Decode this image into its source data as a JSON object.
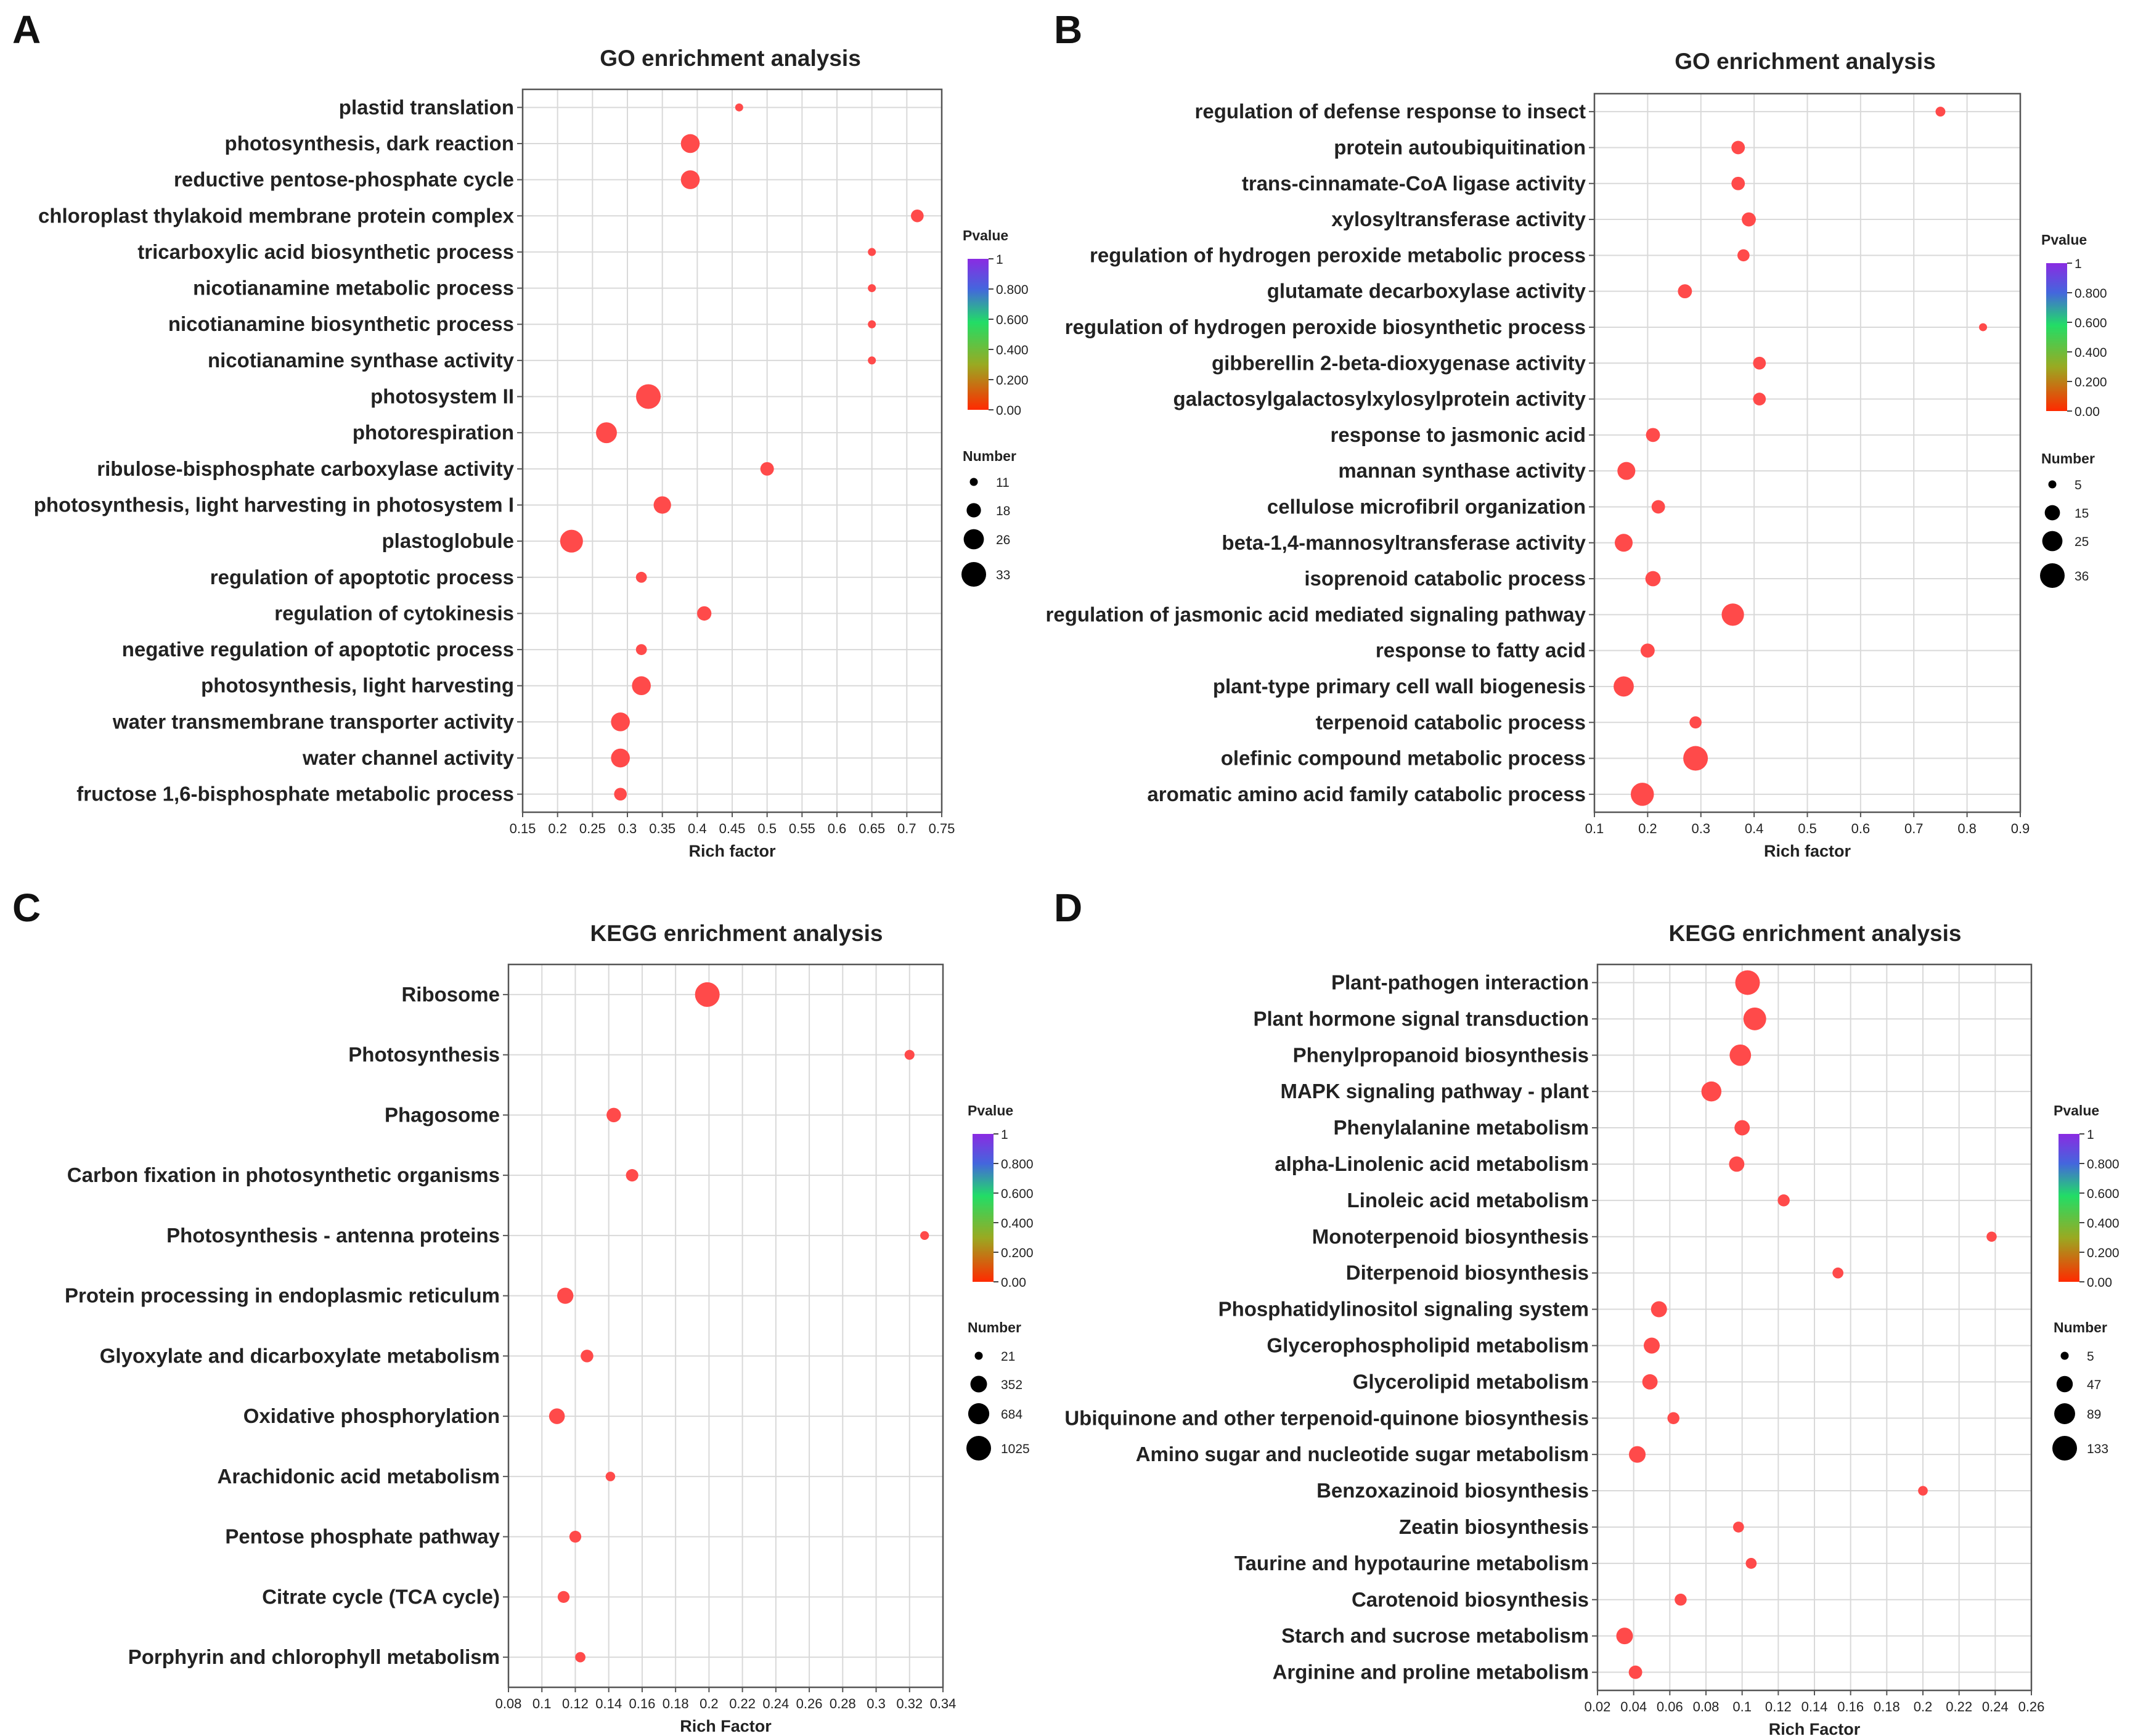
{
  "colors": {
    "low": "#ff3300",
    "mid": "#22dd66",
    "high": "#8a2be2",
    "point": "#ff4a4a"
  },
  "chart_data": [
    {
      "panel": "A",
      "type": "scatter",
      "title": "GO enrichment analysis",
      "xlabel": "Rich factor",
      "ylabel": "",
      "xlim": [
        0.15,
        0.75
      ],
      "xticks": [
        0.15,
        0.2,
        0.25,
        0.3,
        0.35,
        0.4,
        0.45,
        0.5,
        0.55,
        0.6,
        0.65,
        0.7,
        0.75
      ],
      "xtick_labels": [
        "0.15",
        "0.2",
        "0.25",
        "0.3",
        "0.35",
        "0.4",
        "0.45",
        "0.5",
        "0.55",
        "0.6",
        "0.65",
        "0.7",
        "0.75"
      ],
      "grid": true,
      "legend_placement": "right",
      "color_legend": {
        "title": "Pvalue",
        "labels": [
          "1",
          "0.800",
          "0.600",
          "0.400",
          "0.200",
          "0.00"
        ]
      },
      "size_legend": {
        "title": "Number",
        "values": [
          11,
          18,
          26,
          33
        ],
        "labels": [
          "11",
          "18",
          "26",
          "33"
        ]
      },
      "points": [
        {
          "term": "plastid translation",
          "x": 0.46,
          "size": 11
        },
        {
          "term": "photosynthesis, dark reaction",
          "x": 0.39,
          "size": 24
        },
        {
          "term": "reductive pentose-phosphate cycle",
          "x": 0.39,
          "size": 24
        },
        {
          "term": "chloroplast thylakoid membrane protein complex",
          "x": 0.715,
          "size": 16
        },
        {
          "term": "tricarboxylic acid biosynthetic process",
          "x": 0.65,
          "size": 11
        },
        {
          "term": "nicotianamine metabolic process",
          "x": 0.65,
          "size": 11
        },
        {
          "term": "nicotianamine biosynthetic process",
          "x": 0.65,
          "size": 11
        },
        {
          "term": "nicotianamine synthase activity",
          "x": 0.65,
          "size": 11
        },
        {
          "term": "photosystem II",
          "x": 0.33,
          "size": 33
        },
        {
          "term": "photorespiration",
          "x": 0.27,
          "size": 27
        },
        {
          "term": "ribulose-bisphosphate carboxylase activity",
          "x": 0.5,
          "size": 17
        },
        {
          "term": "photosynthesis, light harvesting in photosystem I",
          "x": 0.35,
          "size": 22
        },
        {
          "term": "plastoglobule",
          "x": 0.22,
          "size": 30
        },
        {
          "term": "regulation of apoptotic process",
          "x": 0.32,
          "size": 14
        },
        {
          "term": "regulation of cytokinesis",
          "x": 0.41,
          "size": 18
        },
        {
          "term": "negative regulation of apoptotic process",
          "x": 0.32,
          "size": 14
        },
        {
          "term": "photosynthesis, light harvesting",
          "x": 0.32,
          "size": 24
        },
        {
          "term": "water transmembrane transporter activity",
          "x": 0.29,
          "size": 24
        },
        {
          "term": "water channel activity",
          "x": 0.29,
          "size": 24
        },
        {
          "term": "fructose 1,6-bisphosphate metabolic process",
          "x": 0.29,
          "size": 16
        }
      ]
    },
    {
      "panel": "B",
      "type": "scatter",
      "title": "GO enrichment analysis",
      "xlabel": "Rich factor",
      "ylabel": "",
      "xlim": [
        0.1,
        0.9
      ],
      "xticks": [
        0.1,
        0.2,
        0.3,
        0.4,
        0.5,
        0.6,
        0.7,
        0.8,
        0.9
      ],
      "xtick_labels": [
        "0.1",
        "0.2",
        "0.3",
        "0.4",
        "0.5",
        "0.6",
        "0.7",
        "0.8",
        "0.9"
      ],
      "grid": true,
      "legend_placement": "right",
      "color_legend": {
        "title": "Pvalue",
        "labels": [
          "1",
          "0.800",
          "0.600",
          "0.400",
          "0.200",
          "0.00"
        ]
      },
      "size_legend": {
        "title": "Number",
        "values": [
          5,
          15,
          25,
          36
        ],
        "labels": [
          "5",
          "15",
          "25",
          "36"
        ]
      },
      "points": [
        {
          "term": "regulation of defense response to insect",
          "x": 0.75,
          "size": 7
        },
        {
          "term": "protein autoubiquitination",
          "x": 0.37,
          "size": 12
        },
        {
          "term": "trans-cinnamate-CoA ligase activity",
          "x": 0.37,
          "size": 12
        },
        {
          "term": "xylosyltransferase activity",
          "x": 0.39,
          "size": 13
        },
        {
          "term": "regulation of hydrogen peroxide metabolic process",
          "x": 0.38,
          "size": 10
        },
        {
          "term": "glutamate decarboxylase activity",
          "x": 0.27,
          "size": 13
        },
        {
          "term": "regulation of hydrogen peroxide biosynthetic process",
          "x": 0.83,
          "size": 5
        },
        {
          "term": "gibberellin 2-beta-dioxygenase activity",
          "x": 0.41,
          "size": 11
        },
        {
          "term": "galactosylgalactosylxylosylprotein activity",
          "x": 0.41,
          "size": 11
        },
        {
          "term": "response to jasmonic acid",
          "x": 0.21,
          "size": 13
        },
        {
          "term": "mannan synthase activity",
          "x": 0.16,
          "size": 20
        },
        {
          "term": "cellulose microfibril organization",
          "x": 0.22,
          "size": 12
        },
        {
          "term": "beta-1,4-mannosyltransferase activity",
          "x": 0.155,
          "size": 20
        },
        {
          "term": "isoprenoid catabolic process",
          "x": 0.21,
          "size": 15
        },
        {
          "term": "regulation of jasmonic acid mediated signaling pathway",
          "x": 0.36,
          "size": 30
        },
        {
          "term": "response to fatty acid",
          "x": 0.2,
          "size": 13
        },
        {
          "term": "plant-type primary cell wall biogenesis",
          "x": 0.155,
          "size": 25
        },
        {
          "term": "terpenoid catabolic process",
          "x": 0.29,
          "size": 10
        },
        {
          "term": "olefinic compound metabolic process",
          "x": 0.29,
          "size": 36
        },
        {
          "term": "aromatic amino acid family catabolic process",
          "x": 0.19,
          "size": 32
        }
      ]
    },
    {
      "panel": "C",
      "type": "scatter",
      "title": "KEGG enrichment analysis",
      "xlabel": "Rich Factor",
      "ylabel": "",
      "xlim": [
        0.08,
        0.34
      ],
      "xticks": [
        0.08,
        0.1,
        0.12,
        0.14,
        0.16,
        0.18,
        0.2,
        0.22,
        0.24,
        0.26,
        0.28,
        0.3,
        0.32,
        0.34
      ],
      "xtick_labels": [
        "0.08",
        "0.1",
        "0.12",
        "0.14",
        "0.16",
        "0.18",
        "0.2",
        "0.22",
        "0.24",
        "0.26",
        "0.28",
        "0.3",
        "0.32",
        "0.34"
      ],
      "grid": true,
      "legend_placement": "right",
      "color_legend": {
        "title": "Pvalue",
        "labels": [
          "1",
          "0.800",
          "0.600",
          "0.400",
          "0.200",
          "0.00"
        ]
      },
      "size_legend": {
        "title": "Number",
        "values": [
          21,
          352,
          684,
          1025
        ],
        "labels": [
          "21",
          "352",
          "684",
          "1025"
        ]
      },
      "points": [
        {
          "term": "Ribosome",
          "x": 0.199,
          "size": 1025
        },
        {
          "term": "Photosynthesis",
          "x": 0.32,
          "size": 60
        },
        {
          "term": "Phagosome",
          "x": 0.143,
          "size": 230
        },
        {
          "term": "Carbon fixation in photosynthetic organisms",
          "x": 0.154,
          "size": 140
        },
        {
          "term": "Photosynthesis - antenna proteins",
          "x": 0.329,
          "size": 35
        },
        {
          "term": "Protein processing in endoplasmic reticulum",
          "x": 0.114,
          "size": 330
        },
        {
          "term": "Glyoxylate and dicarboxylate metabolism",
          "x": 0.127,
          "size": 150
        },
        {
          "term": "Oxidative phosphorylation",
          "x": 0.109,
          "size": 300
        },
        {
          "term": "Arachidonic acid metabolism",
          "x": 0.141,
          "size": 50
        },
        {
          "term": "Pentose phosphate pathway",
          "x": 0.12,
          "size": 120
        },
        {
          "term": "Citrate cycle (TCA cycle)",
          "x": 0.113,
          "size": 120
        },
        {
          "term": "Porphyrin and chlorophyll metabolism",
          "x": 0.123,
          "size": 70
        }
      ]
    },
    {
      "panel": "D",
      "type": "scatter",
      "title": "KEGG enrichment analysis",
      "xlabel": "Rich Factor",
      "ylabel": "",
      "xlim": [
        0.02,
        0.26
      ],
      "xticks": [
        0.02,
        0.04,
        0.06,
        0.08,
        0.1,
        0.12,
        0.14,
        0.16,
        0.18,
        0.2,
        0.22,
        0.24,
        0.26
      ],
      "xtick_labels": [
        "0.02",
        "0.04",
        "0.06",
        "0.08",
        "0.1",
        "0.12",
        "0.14",
        "0.16",
        "0.18",
        "0.2",
        "0.22",
        "0.24",
        "0.26"
      ],
      "grid": true,
      "legend_placement": "right",
      "color_legend": {
        "title": "Pvalue",
        "labels": [
          "1",
          "0.800",
          "0.600",
          "0.400",
          "0.200",
          "0.00"
        ]
      },
      "size_legend": {
        "title": "Number",
        "values": [
          5,
          47,
          89,
          133
        ],
        "labels": [
          "5",
          "47",
          "89",
          "133"
        ]
      },
      "points": [
        {
          "term": "Plant-pathogen interaction",
          "x": 0.103,
          "size": 133
        },
        {
          "term": "Plant hormone signal transduction",
          "x": 0.107,
          "size": 110
        },
        {
          "term": "Phenylpropanoid biosynthesis",
          "x": 0.099,
          "size": 95
        },
        {
          "term": "MAPK signaling pathway - plant",
          "x": 0.083,
          "size": 80
        },
        {
          "term": "Phenylalanine metabolism",
          "x": 0.1,
          "size": 40
        },
        {
          "term": "alpha-Linolenic acid metabolism",
          "x": 0.097,
          "size": 40
        },
        {
          "term": "Linoleic acid metabolism",
          "x": 0.123,
          "size": 20
        },
        {
          "term": "Monoterpenoid biosynthesis",
          "x": 0.238,
          "size": 12
        },
        {
          "term": "Diterpenoid biosynthesis",
          "x": 0.153,
          "size": 15
        },
        {
          "term": "Phosphatidylinositol signaling system",
          "x": 0.054,
          "size": 45
        },
        {
          "term": "Glycerophospholipid metabolism",
          "x": 0.05,
          "size": 45
        },
        {
          "term": "Glycerolipid metabolism",
          "x": 0.049,
          "size": 40
        },
        {
          "term": "Ubiquinone and other terpenoid-quinone biosynthesis",
          "x": 0.062,
          "size": 20
        },
        {
          "term": "Amino sugar and nucleotide sugar metabolism",
          "x": 0.042,
          "size": 50
        },
        {
          "term": "Benzoxazinoid biosynthesis",
          "x": 0.2,
          "size": 10
        },
        {
          "term": "Zeatin biosynthesis",
          "x": 0.098,
          "size": 15
        },
        {
          "term": "Taurine and hypotaurine metabolism",
          "x": 0.105,
          "size": 15
        },
        {
          "term": "Carotenoid biosynthesis",
          "x": 0.066,
          "size": 20
        },
        {
          "term": "Starch and sucrose metabolism",
          "x": 0.035,
          "size": 50
        },
        {
          "term": "Arginine and proline metabolism",
          "x": 0.041,
          "size": 28
        }
      ]
    }
  ]
}
